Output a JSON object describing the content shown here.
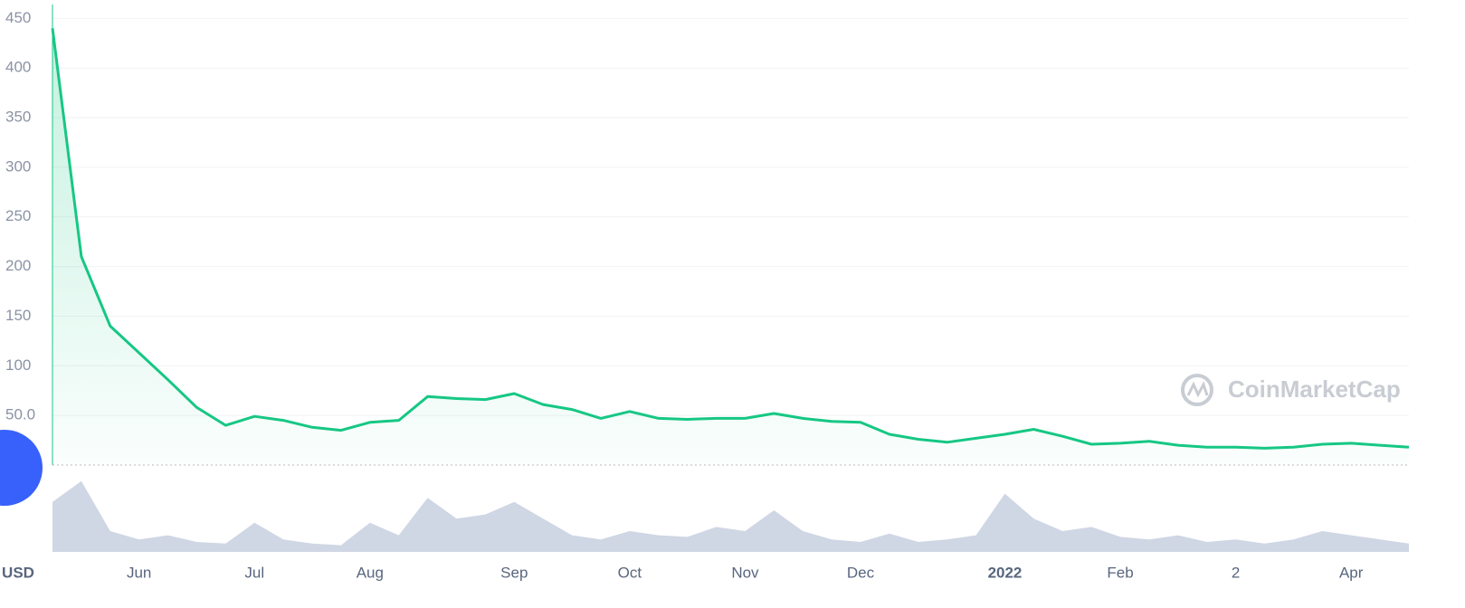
{
  "chart_data": [
    {
      "type": "line",
      "ylabel": "USD",
      "color": "#16c784",
      "grid": true,
      "categories": [
        null,
        null,
        null,
        "Jun",
        null,
        null,
        null,
        "Jul",
        null,
        null,
        null,
        "Aug",
        null,
        null,
        null,
        null,
        "Sep",
        null,
        null,
        null,
        "Oct",
        null,
        null,
        null,
        "Nov",
        null,
        null,
        null,
        "Dec",
        null,
        null,
        null,
        null,
        "2022",
        null,
        null,
        null,
        "Feb",
        null,
        null,
        null,
        "2",
        null,
        null,
        null,
        "Apr",
        null,
        null
      ],
      "values": [
        440,
        210,
        140,
        113,
        86,
        58,
        40,
        49,
        45,
        38,
        35,
        43,
        45,
        69,
        67,
        66,
        72,
        61,
        56,
        47,
        54,
        47,
        46,
        47,
        47,
        52,
        47,
        44,
        43,
        31,
        26,
        23,
        27,
        31,
        36,
        29,
        21,
        22,
        24,
        20,
        18,
        18,
        17,
        18,
        21,
        22,
        20,
        18
      ],
      "ylim": [
        0,
        464
      ],
      "yticks": [
        {
          "value": 50,
          "label": "50.0"
        },
        100,
        150,
        200,
        250,
        300,
        350,
        400,
        450
      ]
    },
    {
      "type": "area",
      "color": "#cfd6e4",
      "ylim": [
        0,
        100
      ],
      "values": [
        60,
        85,
        25,
        15,
        20,
        12,
        10,
        35,
        15,
        10,
        8,
        35,
        20,
        65,
        40,
        45,
        60,
        40,
        20,
        15,
        25,
        20,
        18,
        30,
        25,
        50,
        25,
        15,
        12,
        22,
        12,
        15,
        20,
        70,
        40,
        25,
        30,
        18,
        15,
        20,
        12,
        15,
        10,
        15,
        25,
        20,
        15,
        10
      ]
    }
  ],
  "watermark": "CoinMarketCap"
}
